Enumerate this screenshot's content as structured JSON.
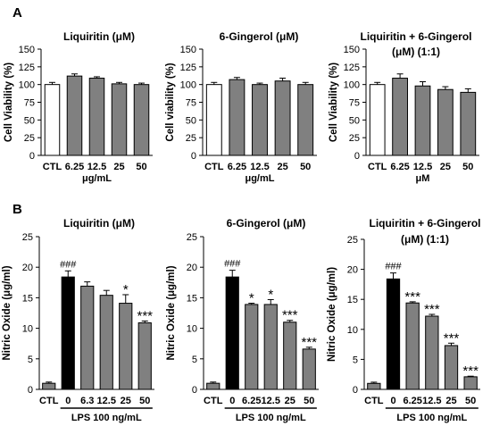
{
  "panels": [
    {
      "letter": "A"
    },
    {
      "letter": "B"
    }
  ],
  "chart_data": [
    {
      "type": "bar",
      "panel": "A",
      "title": "Liquiritin (μM)",
      "ylabel": "Cell Viability (%)",
      "ylim": [
        0,
        150
      ],
      "yticks": [
        0,
        25,
        50,
        75,
        100,
        125,
        150
      ],
      "categories": [
        "CTL",
        "6.25",
        "12.5",
        "25",
        "50"
      ],
      "values": [
        100,
        112,
        109,
        101,
        100
      ],
      "errors": [
        3,
        3,
        2,
        2,
        2
      ],
      "bar_colors": [
        "#ffffff",
        "#808080",
        "#808080",
        "#808080",
        "#808080"
      ],
      "annotations": [
        "",
        "",
        "",
        "",
        ""
      ],
      "xnote": "μg/mL"
    },
    {
      "type": "bar",
      "panel": "A",
      "title": "6-Gingerol (μM)",
      "ylabel": "Cell viability (%)",
      "ylim": [
        0,
        150
      ],
      "yticks": [
        0,
        25,
        50,
        75,
        100,
        125,
        150
      ],
      "categories": [
        "CTL",
        "6.25",
        "12.5",
        "25",
        "50"
      ],
      "values": [
        100,
        107,
        100,
        105,
        100
      ],
      "errors": [
        3,
        3,
        2,
        4,
        3
      ],
      "bar_colors": [
        "#ffffff",
        "#808080",
        "#808080",
        "#808080",
        "#808080"
      ],
      "annotations": [
        "",
        "",
        "",
        "",
        ""
      ],
      "xnote": "μg/mL"
    },
    {
      "type": "bar",
      "panel": "A",
      "title": "Liquiritin + 6-Gingerol (μM) (1:1)",
      "title_lines": [
        "Liquiritin + 6-Gingerol",
        "(μM) (1:1)"
      ],
      "ylabel": "Cell Viability (%)",
      "ylim": [
        0,
        150
      ],
      "yticks": [
        0,
        25,
        50,
        75,
        100,
        125,
        150
      ],
      "categories": [
        "CTL",
        "6.25",
        "12.5",
        "25",
        "50"
      ],
      "values": [
        100,
        109,
        98,
        93,
        89
      ],
      "errors": [
        3,
        6,
        6,
        4,
        5
      ],
      "bar_colors": [
        "#ffffff",
        "#808080",
        "#808080",
        "#808080",
        "#808080"
      ],
      "annotations": [
        "",
        "",
        "",
        "",
        ""
      ],
      "xnote": "μM"
    },
    {
      "type": "bar",
      "panel": "B",
      "title": "Liquiritin (μM)",
      "ylabel": "Nitric Oxide (μg/ml)",
      "ylim": [
        0,
        25
      ],
      "yticks": [
        0,
        5,
        10,
        15,
        20,
        25
      ],
      "categories": [
        "CTL",
        "0",
        "6.3",
        "12.5",
        "25",
        "50"
      ],
      "values": [
        1.0,
        18.4,
        16.9,
        15.4,
        14.1,
        10.9
      ],
      "errors": [
        0.2,
        1.0,
        0.7,
        0.8,
        1.4,
        0.3
      ],
      "bar_colors": [
        "#808080",
        "#000000",
        "#808080",
        "#808080",
        "#808080",
        "#808080"
      ],
      "annotations": [
        "",
        "###",
        "",
        "",
        "*",
        "***"
      ],
      "xnote": "LPS 100 ng/mL"
    },
    {
      "type": "bar",
      "panel": "B",
      "title": "6-Gingerol (μM)",
      "ylabel": "Nitric Oxide (μg/ml)",
      "ylim": [
        0,
        25
      ],
      "yticks": [
        0,
        5,
        10,
        15,
        20,
        25
      ],
      "categories": [
        "CTL",
        "0",
        "6.25",
        "12.5",
        "25",
        "50"
      ],
      "values": [
        1.0,
        18.4,
        13.9,
        13.9,
        11.0,
        6.6
      ],
      "errors": [
        0.2,
        1.1,
        0.2,
        0.8,
        0.3,
        0.3
      ],
      "bar_colors": [
        "#808080",
        "#000000",
        "#808080",
        "#808080",
        "#808080",
        "#808080"
      ],
      "annotations": [
        "",
        "###",
        "*",
        "*",
        "***",
        "***"
      ],
      "xnote": "LPS 100 ng/mL"
    },
    {
      "type": "bar",
      "panel": "B",
      "title": "Liquiritin + 6-Gingerol (μM) (1:1)",
      "title_lines": [
        "Liquiritin + 6-Gingerol",
        "(μM) (1:1)"
      ],
      "ylabel": "Nitric Oxide (μg/ml)",
      "ylim": [
        0,
        25
      ],
      "yticks": [
        0,
        5,
        10,
        15,
        20,
        25
      ],
      "categories": [
        "CTL",
        "0",
        "6.25",
        "12.5",
        "25",
        "50"
      ],
      "values": [
        1.0,
        18.4,
        14.4,
        12.2,
        7.3,
        2.1
      ],
      "errors": [
        0.2,
        1.0,
        0.2,
        0.3,
        0.4,
        0.1
      ],
      "bar_colors": [
        "#808080",
        "#000000",
        "#808080",
        "#808080",
        "#808080",
        "#808080"
      ],
      "annotations": [
        "",
        "###",
        "***",
        "***",
        "***",
        "***"
      ],
      "xnote": "LPS 100 ng/mL"
    }
  ]
}
